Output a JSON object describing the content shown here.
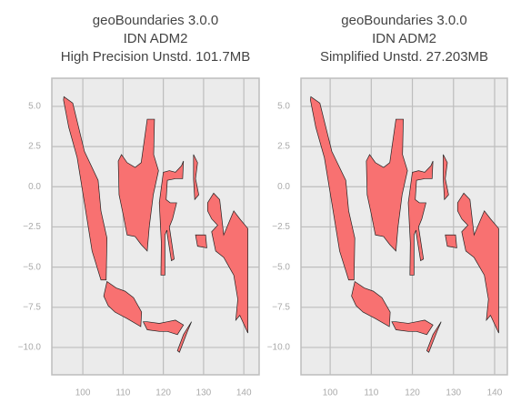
{
  "chart_data": [
    {
      "type": "map",
      "title": [
        "geoBoundaries 3.0.0",
        "IDN ADM2",
        "High Precision Unstd. 101.7MB"
      ],
      "xlim": [
        92.3,
        143.8
      ],
      "ylim": [
        -11.7,
        6.75
      ],
      "xticks": [
        100,
        110,
        120,
        130,
        140
      ],
      "yticks": [
        {
          "value": 5,
          "label": "5.0"
        },
        2.5,
        {
          "value": 0,
          "label": "0.0"
        },
        {
          "value": -2.5,
          "label": "−2.5"
        },
        {
          "value": -5,
          "label": "−5.0"
        },
        {
          "value": -7.5,
          "label": "−7.5"
        },
        {
          "value": -10,
          "label": "−10.0"
        }
      ],
      "grid": true,
      "color": "#f87171"
    },
    {
      "type": "map",
      "title": [
        "geoBoundaries 3.0.0",
        "IDN ADM2",
        "Simplified Unstd. 27.203MB"
      ],
      "xlim": [
        92.9,
        143.1
      ],
      "ylim": [
        -11.7,
        6.75
      ],
      "xticks": [
        100,
        110,
        120,
        130,
        140
      ],
      "yticks": [
        {
          "value": 5,
          "label": "5.0"
        },
        2.5,
        {
          "value": 0,
          "label": "0.0"
        },
        {
          "value": -2.5,
          "label": "−2.5"
        },
        {
          "value": -5,
          "label": "−5.0"
        },
        {
          "value": -7.5,
          "label": "−7.5"
        },
        {
          "value": -10,
          "label": "−10.0"
        }
      ],
      "grid": true,
      "color": "#f87171"
    }
  ]
}
